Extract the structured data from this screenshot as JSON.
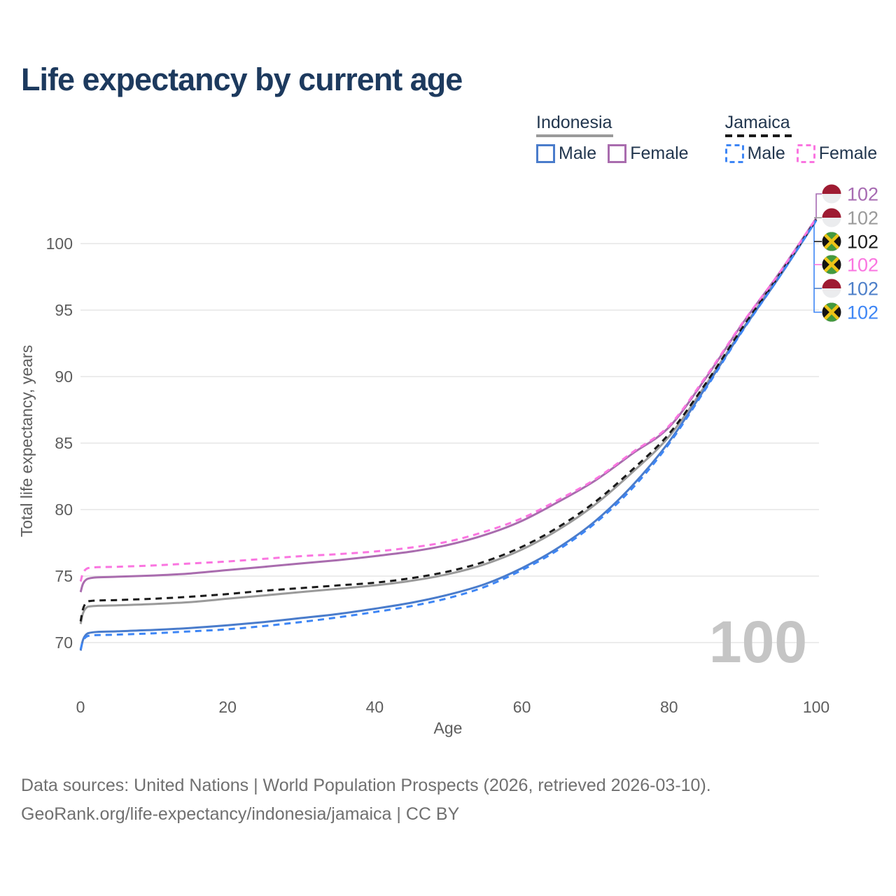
{
  "title": "Life expectancy by current age",
  "legend": {
    "groups": [
      {
        "name": "Indonesia",
        "line_style": "solid",
        "underline_color": "#9a9a9a",
        "items": [
          {
            "label": "Male",
            "color": "#4a7ccb",
            "dashed": false
          },
          {
            "label": "Female",
            "color": "#a96cae",
            "dashed": false
          }
        ]
      },
      {
        "name": "Jamaica",
        "line_style": "dashed",
        "underline_color": "#1a1a1a",
        "items": [
          {
            "label": "Male",
            "color": "#3e86f5",
            "dashed": true
          },
          {
            "label": "Female",
            "color": "#fa75e0",
            "dashed": true
          }
        ]
      }
    ]
  },
  "chart_data": {
    "type": "line",
    "title": "Life expectancy by current age",
    "xlabel": "Age",
    "ylabel": "Total life expectancy, years",
    "x_ticks": [
      0,
      20,
      40,
      60,
      80,
      100
    ],
    "y_ticks": [
      70,
      75,
      80,
      85,
      90,
      95,
      100
    ],
    "xlim": [
      0,
      100
    ],
    "ylim": [
      68.5,
      103
    ],
    "grid": "horizontal",
    "watermark_current_age": "100",
    "x": [
      0,
      1,
      5,
      10,
      15,
      20,
      25,
      30,
      35,
      40,
      45,
      50,
      55,
      60,
      65,
      70,
      75,
      80,
      85,
      90,
      95,
      100
    ],
    "series": [
      {
        "name": "Indonesia",
        "country": "Indonesia",
        "group": "all",
        "color": "#9a9a9a",
        "dashed": false,
        "values": [
          71.4,
          72.7,
          72.8,
          72.9,
          73.05,
          73.3,
          73.55,
          73.8,
          74.05,
          74.3,
          74.65,
          75.15,
          75.9,
          77.0,
          78.5,
          80.4,
          82.8,
          85.5,
          89.4,
          93.6,
          97.6,
          101.8
        ]
      },
      {
        "name": "Indonesia Female",
        "country": "Indonesia",
        "group": "Female",
        "color": "#a96cae",
        "dashed": false,
        "values": [
          73.8,
          74.8,
          74.95,
          75.05,
          75.2,
          75.45,
          75.7,
          75.95,
          76.2,
          76.5,
          76.85,
          77.35,
          78.1,
          79.15,
          80.6,
          82.2,
          84.2,
          86.2,
          89.9,
          94.0,
          97.8,
          101.9
        ]
      },
      {
        "name": "Indonesia Male",
        "country": "Indonesia",
        "group": "Male",
        "color": "#4a7ccb",
        "dashed": false,
        "values": [
          69.4,
          70.7,
          70.85,
          70.95,
          71.1,
          71.3,
          71.55,
          71.85,
          72.15,
          72.55,
          73.0,
          73.6,
          74.4,
          75.6,
          77.15,
          79.15,
          81.8,
          85.1,
          89.2,
          93.5,
          97.5,
          101.75
        ]
      },
      {
        "name": "Jamaica",
        "country": "Jamaica",
        "group": "all",
        "color": "#1a1a1a",
        "dashed": true,
        "values": [
          71.6,
          73.1,
          73.2,
          73.3,
          73.45,
          73.65,
          73.9,
          74.1,
          74.3,
          74.5,
          74.85,
          75.35,
          76.1,
          77.2,
          78.7,
          80.6,
          83.0,
          85.7,
          89.5,
          93.7,
          97.65,
          101.8
        ]
      },
      {
        "name": "Jamaica Female",
        "country": "Jamaica",
        "group": "Female",
        "color": "#fa75e0",
        "dashed": true,
        "values": [
          74.6,
          75.6,
          75.7,
          75.8,
          75.95,
          76.1,
          76.3,
          76.5,
          76.65,
          76.85,
          77.15,
          77.6,
          78.35,
          79.35,
          80.75,
          82.3,
          84.3,
          86.3,
          90.0,
          94.05,
          97.8,
          101.9
        ]
      },
      {
        "name": "Jamaica Male",
        "country": "Jamaica",
        "group": "Male",
        "color": "#3e86f5",
        "dashed": true,
        "values": [
          69.5,
          70.5,
          70.6,
          70.7,
          70.85,
          71.0,
          71.25,
          71.55,
          71.9,
          72.3,
          72.75,
          73.35,
          74.2,
          75.45,
          77.0,
          79.0,
          81.6,
          84.95,
          89.1,
          93.45,
          97.5,
          101.75
        ]
      }
    ],
    "end_labels": [
      {
        "flag": "indonesia",
        "series": "Indonesia Female",
        "value": "102",
        "color": "#a76bb2"
      },
      {
        "flag": "indonesia",
        "series": "Indonesia",
        "value": "102",
        "color": "#9a9a9a"
      },
      {
        "flag": "jamaica",
        "series": "Jamaica",
        "value": "102",
        "color": "#1a1a1a"
      },
      {
        "flag": "jamaica",
        "series": "Jamaica Female",
        "value": "102",
        "color": "#fa75e0"
      },
      {
        "flag": "indonesia",
        "series": "Indonesia Male",
        "value": "102",
        "color": "#4d7fc9"
      },
      {
        "flag": "jamaica",
        "series": "Jamaica Male",
        "value": "102",
        "color": "#3e86f5"
      }
    ]
  },
  "footer": {
    "line1": "Data sources: United Nations | World Population Prospects (2026, retrieved 2026-03-10).",
    "line2": "GeoRank.org/life-expectancy/indonesia/jamaica | CC BY"
  }
}
